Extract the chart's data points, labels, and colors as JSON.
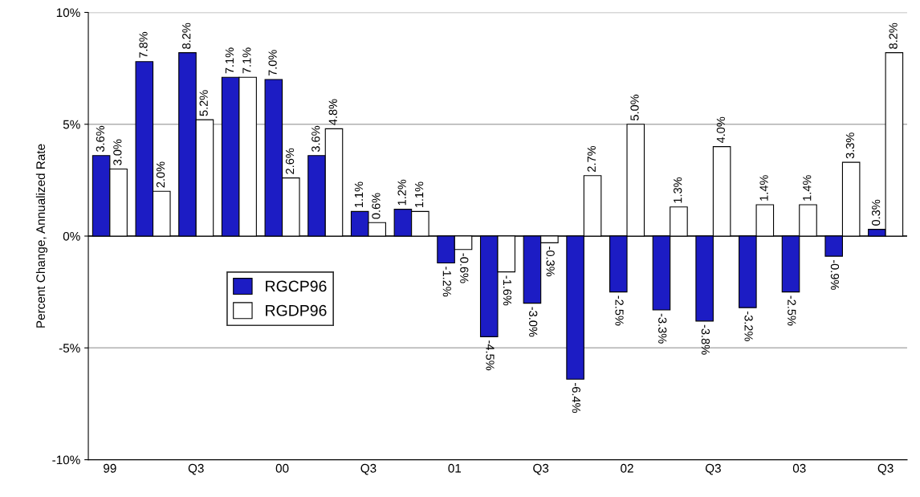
{
  "chart_data": {
    "type": "bar",
    "ylabel": "Percent Change, Annualized Rate",
    "categories": [
      "99",
      null,
      "Q3",
      null,
      "00",
      null,
      "Q3",
      null,
      "01",
      null,
      "Q3",
      null,
      "02",
      null,
      "Q3",
      null,
      "03",
      null,
      "Q3"
    ],
    "series": [
      {
        "name": "RGCP96",
        "color": "#1c1cc4",
        "values": [
          3.6,
          7.8,
          8.2,
          7.1,
          7.0,
          3.6,
          1.1,
          1.2,
          -1.2,
          -4.5,
          -3.0,
          -6.4,
          -2.5,
          -3.3,
          -3.8,
          -3.2,
          -2.5,
          -0.9,
          0.3
        ],
        "value_labels": [
          "3.6%",
          "7.8%",
          "8.2%",
          "7.1%",
          "7.0%",
          "3.6%",
          "1.1%",
          "1.2%",
          "-1.2%",
          "-4.5%",
          "-3.0%",
          "-6.4%",
          "-2.5%",
          "-3.3%",
          "-3.8%",
          "-3.2%",
          "-2.5%",
          "-0.9%",
          "0.3%"
        ]
      },
      {
        "name": "RGDP96",
        "color": "#ffffff",
        "values": [
          3.0,
          2.0,
          5.2,
          7.1,
          2.6,
          4.8,
          0.6,
          1.1,
          -0.6,
          -1.6,
          -0.3,
          2.7,
          5.0,
          1.3,
          4.0,
          1.4,
          1.4,
          3.3,
          8.2
        ],
        "value_labels": [
          "3.0%",
          "2.0%",
          "5.2%",
          "7.1%",
          "2.6%",
          "4.8%",
          "0.6%",
          "1.1%",
          "-0.6%",
          "-1.6%",
          "-0.3%",
          "2.7%",
          "5.0%",
          "1.3%",
          "4.0%",
          "1.4%",
          "1.4%",
          "3.3%",
          "8.2%"
        ]
      }
    ],
    "ylim": [
      -10,
      10
    ],
    "yticks": [
      {
        "value": -10,
        "label": "-10%"
      },
      {
        "value": -5,
        "label": "-5%"
      },
      {
        "value": 0,
        "label": "0%"
      },
      {
        "value": 5,
        "label": "5%"
      },
      {
        "value": 10,
        "label": "10%"
      }
    ],
    "grid": "y",
    "legend": "center left"
  }
}
